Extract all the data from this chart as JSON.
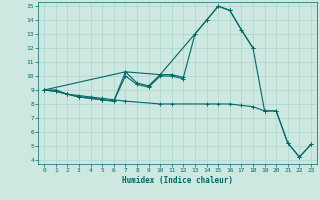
{
  "xlabel": "Humidex (Indice chaleur)",
  "bg_color": "#cce8e0",
  "grid_color": "#aad4cc",
  "line_color": "#006868",
  "xlim": [
    -0.5,
    23.5
  ],
  "ylim": [
    3.7,
    15.3
  ],
  "xticks": [
    0,
    1,
    2,
    3,
    4,
    5,
    6,
    7,
    8,
    9,
    10,
    11,
    12,
    13,
    14,
    15,
    16,
    17,
    18,
    19,
    20,
    21,
    22,
    23
  ],
  "yticks": [
    4,
    5,
    6,
    7,
    8,
    9,
    10,
    11,
    12,
    13,
    14,
    15
  ],
  "line1_x": [
    0,
    1,
    2,
    3,
    4,
    5,
    6,
    7,
    8,
    9,
    10,
    11,
    12,
    13,
    14,
    15,
    16,
    17,
    18
  ],
  "line1_y": [
    9.0,
    9.0,
    8.7,
    8.5,
    8.4,
    8.3,
    8.2,
    10.3,
    9.5,
    9.3,
    10.1,
    10.1,
    9.9,
    13.0,
    14.0,
    15.0,
    14.7,
    13.3,
    12.0
  ],
  "line2_x": [
    0,
    1,
    2,
    3,
    4,
    5,
    6,
    7,
    8,
    9,
    10,
    11,
    12
  ],
  "line2_y": [
    9.0,
    8.9,
    8.7,
    8.5,
    8.4,
    8.3,
    8.2,
    10.0,
    9.4,
    9.2,
    10.0,
    10.0,
    9.8
  ],
  "line3_x": [
    0,
    1,
    2,
    3,
    4,
    5,
    6,
    7,
    10,
    11,
    14,
    15,
    16,
    17,
    18,
    19,
    20,
    21,
    22,
    23
  ],
  "line3_y": [
    9.0,
    8.9,
    8.7,
    8.6,
    8.5,
    8.4,
    8.3,
    8.2,
    8.0,
    8.0,
    8.0,
    8.0,
    8.0,
    7.9,
    7.8,
    7.5,
    7.5,
    5.2,
    4.2,
    5.1
  ],
  "line4_x": [
    0,
    7,
    10,
    14,
    15,
    16,
    17,
    18,
    19,
    20,
    21,
    22,
    23
  ],
  "line4_y": [
    9.0,
    10.3,
    10.1,
    14.0,
    15.0,
    14.7,
    13.3,
    12.0,
    7.5,
    7.5,
    5.2,
    4.2,
    5.1
  ]
}
